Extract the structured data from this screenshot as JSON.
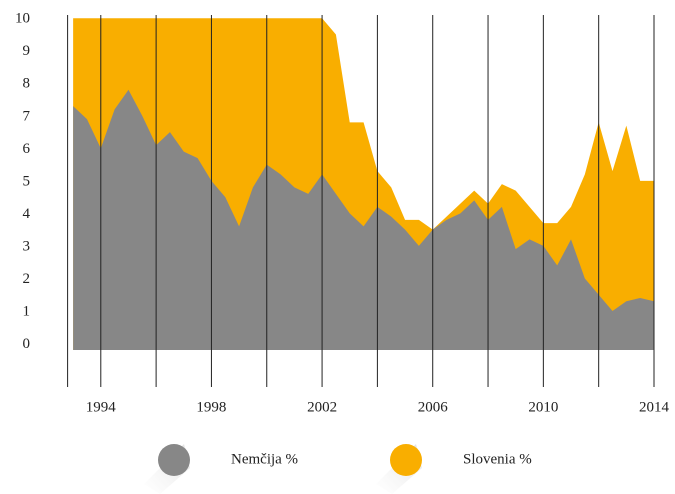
{
  "chart_data": {
    "type": "area",
    "x": [
      1993,
      1993.5,
      1994,
      1994.5,
      1995,
      1995.5,
      1996,
      1996.5,
      1997,
      1997.5,
      1998,
      1998.5,
      1999,
      1999.5,
      2000,
      2000.5,
      2001,
      2001.5,
      2002,
      2002.5,
      2003,
      2003.5,
      2004,
      2004.5,
      2005,
      2005.5,
      2006,
      2006.5,
      2007,
      2007.5,
      2008,
      2008.5,
      2009,
      2009.5,
      2010,
      2010.5,
      2011,
      2011.5,
      2012,
      2012.5,
      2013,
      2013.5,
      2014
    ],
    "series": [
      {
        "name": "Slovenia %",
        "color": "#f9ae00",
        "values": [
          10,
          10,
          10,
          10,
          10,
          10,
          10,
          10,
          10,
          10,
          10,
          10,
          10,
          10,
          10,
          10,
          10,
          10,
          10,
          9.5,
          6.8,
          6.8,
          5.3,
          4.8,
          3.8,
          3.8,
          3.5,
          3.9,
          4.3,
          4.7,
          4.3,
          4.9,
          4.7,
          4.2,
          3.7,
          3.7,
          4.2,
          5.2,
          6.8,
          5.3,
          6.7,
          5.0,
          5.0
        ]
      },
      {
        "name": "Nemčija %",
        "color": "#878787",
        "values": [
          7.3,
          6.9,
          6.0,
          7.2,
          7.8,
          7.0,
          6.1,
          6.5,
          5.9,
          5.7,
          5.0,
          4.5,
          3.6,
          4.8,
          5.5,
          5.2,
          4.8,
          4.6,
          5.2,
          4.6,
          4.0,
          3.6,
          4.2,
          3.9,
          3.5,
          3.0,
          3.5,
          3.8,
          4.0,
          4.4,
          3.8,
          4.2,
          2.9,
          3.2,
          3.0,
          2.4,
          3.2,
          2.0,
          1.5,
          1.0,
          1.3,
          1.4,
          1.3
        ]
      }
    ],
    "xlim": [
      1992.8,
      2014
    ],
    "xticks": [
      1994,
      {
        "value": 1996,
        "label": null
      },
      1998,
      {
        "value": 2000,
        "label": null
      },
      2002,
      {
        "value": 2004,
        "label": null
      },
      2006,
      {
        "value": 2008,
        "label": null
      },
      2010,
      {
        "value": 2012,
        "label": null
      },
      2014
    ],
    "ylim": [
      -0.2,
      10.1
    ],
    "yticks": [
      0,
      1,
      2,
      3,
      4,
      5,
      6,
      7,
      8,
      9,
      10
    ],
    "grid": true
  }
}
